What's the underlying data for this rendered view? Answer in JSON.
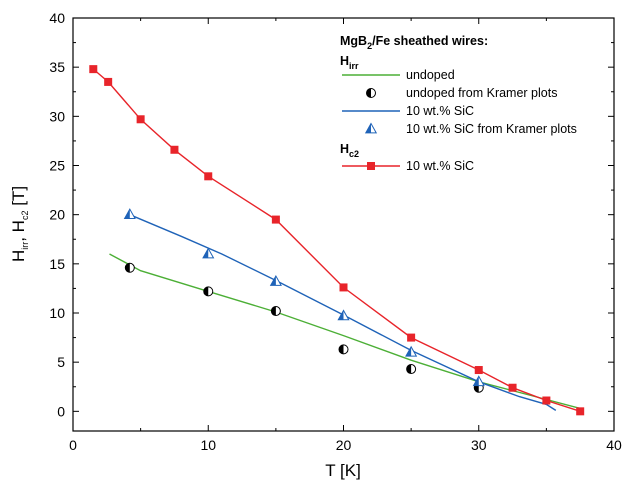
{
  "chart_data": {
    "type": "line",
    "xlabel": "T [K]",
    "ylabel": {
      "parts": [
        "H",
        "irr",
        ", H",
        "c2",
        " [T]"
      ]
    },
    "xlim": [
      0,
      40
    ],
    "ylim": [
      -2,
      40
    ],
    "xticks": [
      0,
      10,
      20,
      30,
      40
    ],
    "yticks": [
      0,
      5,
      10,
      15,
      20,
      25,
      30,
      35,
      40
    ],
    "grid": false,
    "legend_position": "top-right",
    "legend": {
      "header": {
        "parts": [
          "MgB",
          "2",
          "/Fe sheathed wires:"
        ]
      },
      "group1": {
        "parts": [
          "H",
          "irr"
        ]
      },
      "group2": {
        "parts": [
          "H",
          "c2"
        ]
      }
    },
    "series": [
      {
        "name": "undoped",
        "kind": "line",
        "color": "#4caf36",
        "x": [
          2.7,
          5,
          10,
          15,
          20,
          25,
          30,
          35,
          37.5
        ],
        "y": [
          16.0,
          14.3,
          12.2,
          10.1,
          7.7,
          5.2,
          3.0,
          1.2,
          0.3
        ]
      },
      {
        "name": "undoped from Kramer plots",
        "kind": "marker",
        "marker": "half-circle",
        "color": "#000000",
        "x": [
          4.2,
          10,
          15,
          20,
          25,
          30
        ],
        "y": [
          14.6,
          12.2,
          10.2,
          6.3,
          4.3,
          2.4
        ]
      },
      {
        "name": "10 wt.% SiC",
        "kind": "line",
        "color": "#1f63b8",
        "x": [
          4.2,
          8,
          11,
          15,
          20,
          25,
          30,
          33,
          35,
          35.7
        ],
        "y": [
          20.0,
          17.8,
          16.0,
          13.3,
          9.8,
          6.2,
          3.0,
          1.5,
          0.7,
          0.1
        ]
      },
      {
        "name": "10 wt.% SiC from Kramer plots",
        "kind": "marker",
        "marker": "half-triangle",
        "color": "#1f63b8",
        "x": [
          4.2,
          10,
          15,
          20,
          25,
          30
        ],
        "y": [
          20.0,
          16.0,
          13.2,
          9.7,
          6.0,
          3.0
        ]
      },
      {
        "name": "10 wt.% SiC",
        "kind": "line-marker",
        "marker": "square",
        "color": "#e8242a",
        "x": [
          1.5,
          2.6,
          5,
          7.5,
          10,
          15,
          20,
          25,
          30,
          32.5,
          35,
          37.5
        ],
        "y": [
          34.8,
          33.5,
          29.7,
          26.6,
          23.9,
          19.5,
          12.6,
          7.5,
          4.2,
          2.4,
          1.1,
          0.0
        ]
      }
    ]
  }
}
